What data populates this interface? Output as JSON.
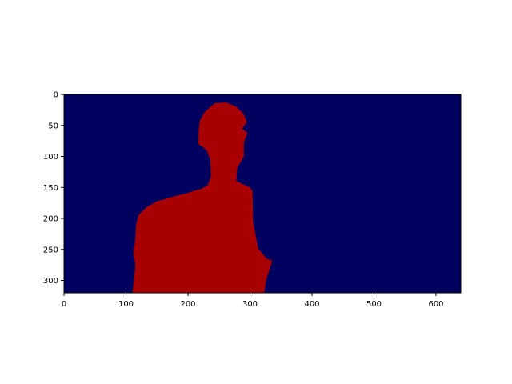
{
  "figure": {
    "background": "#ffffff",
    "plot_kind": "segmentation mask image (imshow)"
  },
  "chart_data": {
    "type": "heatmap",
    "title": "",
    "xlabel": "",
    "ylabel": "",
    "x_range": [
      0,
      640
    ],
    "y_range": [
      320,
      0
    ],
    "y_inverted": true,
    "x_ticks": [
      0,
      100,
      200,
      300,
      400,
      500,
      600
    ],
    "y_ticks": [
      0,
      50,
      100,
      150,
      200,
      250,
      300
    ],
    "x_tick_labels": [
      "0",
      "100",
      "200",
      "300",
      "400",
      "500",
      "600"
    ],
    "y_tick_labels": [
      "0",
      "50",
      "100",
      "150",
      "200",
      "250",
      "300"
    ],
    "grid": false,
    "legend": "none",
    "colors": {
      "background_class": "#00005f",
      "foreground_class": "#a80000"
    },
    "foreground_region_outline": [
      [
        110,
        320
      ],
      [
        113,
        300
      ],
      [
        115,
        275
      ],
      [
        112,
        255
      ],
      [
        115,
        235
      ],
      [
        116,
        212
      ],
      [
        120,
        195
      ],
      [
        132,
        183
      ],
      [
        150,
        172
      ],
      [
        160,
        170
      ],
      [
        175,
        165
      ],
      [
        196,
        160
      ],
      [
        222,
        152
      ],
      [
        232,
        146
      ],
      [
        237,
        133
      ],
      [
        236,
        105
      ],
      [
        230,
        90
      ],
      [
        223,
        84
      ],
      [
        217,
        80
      ],
      [
        217,
        60
      ],
      [
        219,
        43
      ],
      [
        226,
        30
      ],
      [
        236,
        20
      ],
      [
        244,
        14
      ],
      [
        262,
        13
      ],
      [
        278,
        20
      ],
      [
        290,
        32
      ],
      [
        295,
        45
      ],
      [
        287,
        55
      ],
      [
        296,
        62
      ],
      [
        290,
        78
      ],
      [
        290,
        100
      ],
      [
        279,
        120
      ],
      [
        278,
        140
      ],
      [
        298,
        149
      ],
      [
        304,
        155
      ],
      [
        305,
        205
      ],
      [
        313,
        248
      ],
      [
        327,
        265
      ],
      [
        336,
        268
      ],
      [
        326,
        300
      ],
      [
        323,
        320
      ]
    ]
  }
}
